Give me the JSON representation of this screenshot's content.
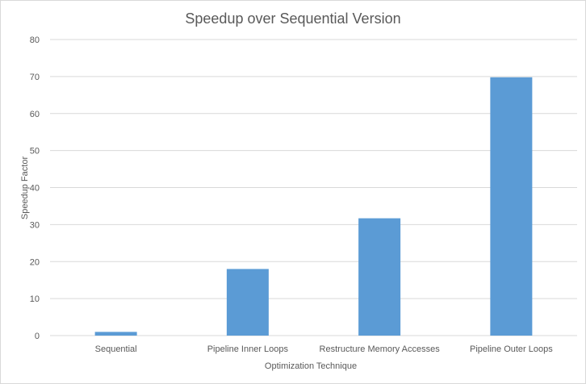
{
  "chart_data": {
    "type": "bar",
    "title": "Speedup over Sequential Version",
    "xlabel": "Optimization Technique",
    "ylabel": "Speedup Factor",
    "categories": [
      "Sequential",
      "Pipeline Inner Loops",
      "Restructure Memory Accesses",
      "Pipeline Outer Loops"
    ],
    "values": [
      1,
      18,
      31.7,
      69.8
    ],
    "ylim": [
      0,
      80
    ],
    "yticks": [
      0,
      10,
      20,
      30,
      40,
      50,
      60,
      70,
      80
    ],
    "grid": true,
    "legend": "none",
    "colors": {
      "bar": "#5b9bd5",
      "grid": "#d9d9d9",
      "text": "#595959"
    }
  }
}
